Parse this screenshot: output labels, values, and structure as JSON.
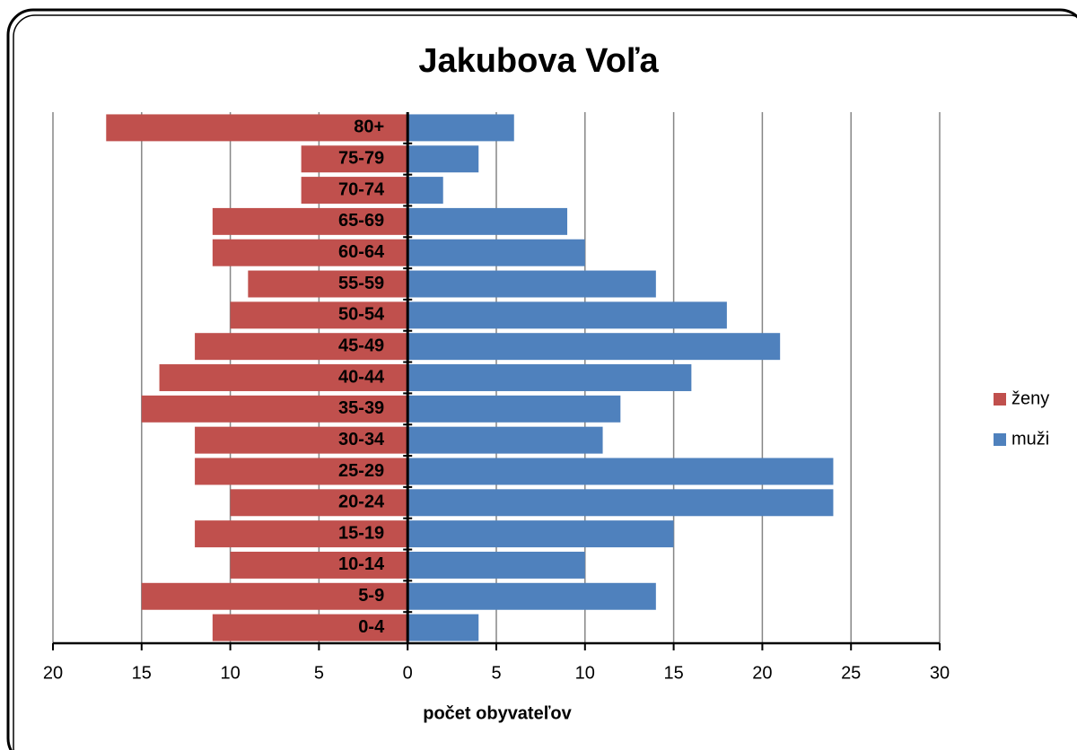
{
  "chart_data": {
    "type": "pyramid",
    "title": "Jakubova Voľa",
    "x_label": "počet obyvateľov",
    "categories": [
      "0-4",
      "5-9",
      "10-14",
      "15-19",
      "20-24",
      "25-29",
      "30-34",
      "35-39",
      "40-44",
      "45-49",
      "50-54",
      "55-59",
      "60-64",
      "65-69",
      "70-74",
      "75-79",
      "80+"
    ],
    "series": [
      {
        "name": "ženy",
        "color": "#c0504d",
        "values": [
          -11,
          -15,
          -10,
          -12,
          -10,
          -12,
          -12,
          -15,
          -14,
          -12,
          -10,
          -9,
          -11,
          -11,
          -6,
          -6,
          -17
        ]
      },
      {
        "name": "muži",
        "color": "#4f81bd",
        "values": [
          4,
          14,
          10,
          15,
          24,
          24,
          11,
          12,
          16,
          21,
          18,
          14,
          10,
          9,
          2,
          4,
          6
        ]
      }
    ],
    "xlim": [
      -20,
      30
    ],
    "xticks": [
      {
        "value": -20,
        "label": "20"
      },
      {
        "value": -15,
        "label": "15"
      },
      {
        "value": -10,
        "label": "10"
      },
      {
        "value": -5,
        "label": "5"
      },
      0,
      5,
      10,
      15,
      20,
      25,
      30
    ],
    "grid": true,
    "legend": "right"
  }
}
